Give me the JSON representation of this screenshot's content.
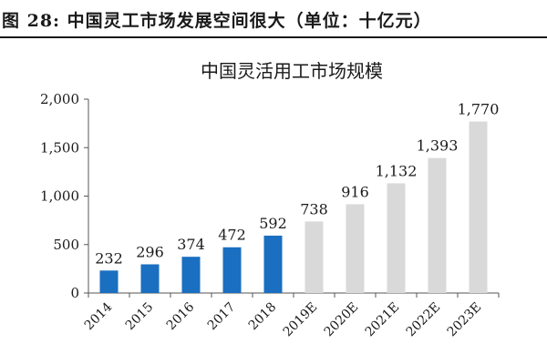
{
  "figure_title": "图 28:  中国灵工市场发展空间很大（单位：十亿元）",
  "chart_data": {
    "type": "bar",
    "title": "中国灵活用工市场规模",
    "categories": [
      "2014",
      "2015",
      "2016",
      "2017",
      "2018",
      "2019E",
      "2020E",
      "2021E",
      "2022E",
      "2023E"
    ],
    "values": [
      232,
      296,
      374,
      472,
      592,
      738,
      916,
      1132,
      1393,
      1770
    ],
    "value_labels": [
      "232",
      "296",
      "374",
      "472",
      "592",
      "738",
      "916",
      "1,132",
      "1,393",
      "1,770"
    ],
    "y_ticks": [
      0,
      500,
      1000,
      1500,
      2000
    ],
    "y_tick_labels": [
      "0",
      "500",
      "1,000",
      "1,500",
      "2,000"
    ],
    "ylim": [
      0,
      2000
    ],
    "xlabel": "",
    "ylabel": "",
    "grid": false,
    "legend": "none",
    "colors": {
      "actual": "#1a6fc0",
      "forecast": "#d9d9d9",
      "axis": "#555555"
    },
    "actual_count": 5
  }
}
